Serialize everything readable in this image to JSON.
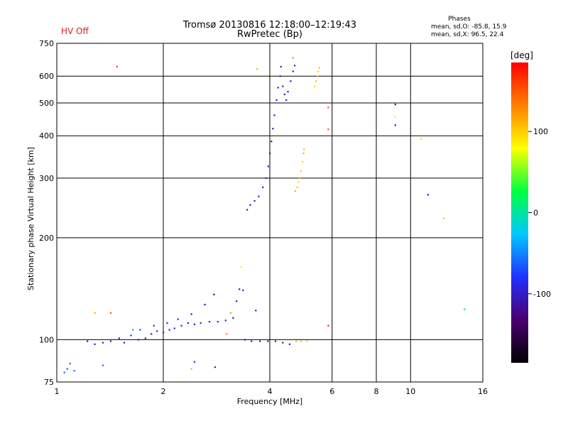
{
  "status": {
    "hv_label": "HV Off",
    "color": "#e02020"
  },
  "header": {
    "title_line1": "Tromsø 20130816 12:18:00–12:19:43",
    "title_line2": "RwPretec (Bp)"
  },
  "phase_stats": {
    "title": "Phases",
    "o_line": "mean, sd,O: -85.8, 15.9",
    "x_line": "mean, sd,X:  96.5, 22.4"
  },
  "colorbar": {
    "label": "[deg]",
    "ticks": [
      {
        "value": 100,
        "label": "100"
      },
      {
        "value": 0,
        "label": "0"
      },
      {
        "value": -100,
        "label": "-100"
      }
    ],
    "range": [
      -185,
      185
    ],
    "stops": [
      "#000000",
      "#4a0070",
      "#2030ff",
      "#00c8ff",
      "#00ff40",
      "#ffff00",
      "#ff8000",
      "#ff0000"
    ]
  },
  "chart_data": {
    "type": "scatter",
    "title": "Tromsø 20130816 12:18:00–12:19:43 RwPretec (Bp)",
    "xlabel": "Frequency [MHz]",
    "ylabel": "Stationary phase Virtual Height [km]",
    "xscale": "log",
    "yscale": "log",
    "xlim": [
      1,
      16
    ],
    "ylim": [
      75,
      750
    ],
    "xticks": [
      {
        "v": 1,
        "l": "1"
      },
      {
        "v": 2,
        "l": "2"
      },
      {
        "v": 4,
        "l": "4"
      },
      {
        "v": 6,
        "l": "6"
      },
      {
        "v": 8,
        "l": "8"
      },
      {
        "v": 10,
        "l": "10"
      },
      {
        "v": 16,
        "l": "16"
      }
    ],
    "yticks": [
      {
        "v": 75,
        "l": "75"
      },
      {
        "v": 100,
        "l": "100"
      },
      {
        "v": 200,
        "l": "200"
      },
      {
        "v": 300,
        "l": "300"
      },
      {
        "v": 400,
        "l": "400"
      },
      {
        "v": 500,
        "l": "500"
      },
      {
        "v": 600,
        "l": "600"
      },
      {
        "v": 750,
        "l": "750"
      }
    ],
    "grid": true,
    "series": [
      {
        "color_by": "phase_deg",
        "points": [
          [
            1.05,
            80,
            -60
          ],
          [
            1.07,
            82,
            -60
          ],
          [
            1.09,
            85,
            -60
          ],
          [
            1.12,
            81,
            -60
          ],
          [
            1.22,
            99,
            -105
          ],
          [
            1.28,
            97,
            -105
          ],
          [
            1.35,
            98,
            -100
          ],
          [
            1.42,
            99,
            -105
          ],
          [
            1.5,
            101,
            -100
          ],
          [
            1.55,
            98,
            -105
          ],
          [
            1.62,
            103,
            -95
          ],
          [
            1.7,
            100,
            -100
          ],
          [
            1.78,
            101,
            -105
          ],
          [
            1.85,
            104,
            -100
          ],
          [
            1.92,
            106,
            -95
          ],
          [
            2.0,
            105,
            -100
          ],
          [
            2.08,
            107,
            -105
          ],
          [
            2.15,
            108,
            -100
          ],
          [
            2.25,
            110,
            -95
          ],
          [
            2.35,
            112,
            -100
          ],
          [
            2.45,
            111,
            -105
          ],
          [
            2.55,
            112,
            -100
          ],
          [
            2.7,
            113,
            -105
          ],
          [
            2.85,
            113,
            -100
          ],
          [
            3.0,
            114,
            -105
          ],
          [
            3.15,
            116,
            -100
          ],
          [
            1.72,
            107,
            -80
          ],
          [
            1.88,
            110,
            -90
          ],
          [
            2.05,
            112,
            -85
          ],
          [
            2.2,
            115,
            -95
          ],
          [
            2.4,
            119,
            -110
          ],
          [
            2.62,
            127,
            -105
          ],
          [
            2.78,
            136,
            -110
          ],
          [
            3.22,
            130,
            -105
          ],
          [
            3.28,
            141,
            -110
          ],
          [
            3.32,
            164,
            70
          ],
          [
            2.45,
            86,
            -90
          ],
          [
            2.8,
            83,
            -100
          ],
          [
            3.02,
            104,
            130
          ],
          [
            3.4,
            100,
            -110
          ],
          [
            3.55,
            99,
            -110
          ],
          [
            3.75,
            99,
            -110
          ],
          [
            3.95,
            99,
            -110
          ],
          [
            4.15,
            99,
            -110
          ],
          [
            4.35,
            98,
            -110
          ],
          [
            4.55,
            97,
            -105
          ],
          [
            4.75,
            99,
            110
          ],
          [
            4.9,
            99,
            100
          ],
          [
            5.1,
            99,
            95
          ],
          [
            3.45,
            242,
            -110
          ],
          [
            3.52,
            250,
            -105
          ],
          [
            3.62,
            257,
            -110
          ],
          [
            3.72,
            265,
            -105
          ],
          [
            3.82,
            282,
            -110
          ],
          [
            3.9,
            300,
            -105
          ],
          [
            3.96,
            325,
            -110
          ],
          [
            4.0,
            355,
            -105
          ],
          [
            4.04,
            385,
            -110
          ],
          [
            4.08,
            420,
            -105
          ],
          [
            4.12,
            460,
            -110
          ],
          [
            4.18,
            510,
            -105
          ],
          [
            4.22,
            555,
            -110
          ],
          [
            4.28,
            600,
            -105
          ],
          [
            4.3,
            640,
            -110
          ],
          [
            4.35,
            560,
            -105
          ],
          [
            4.4,
            530,
            -110
          ],
          [
            4.45,
            510,
            -105
          ],
          [
            4.5,
            540,
            -110
          ],
          [
            4.58,
            580,
            -105
          ],
          [
            4.65,
            620,
            -110
          ],
          [
            4.7,
            645,
            -105
          ],
          [
            4.72,
            275,
            110
          ],
          [
            4.78,
            282,
            105
          ],
          [
            4.82,
            292,
            100
          ],
          [
            4.86,
            300,
            110
          ],
          [
            4.9,
            315,
            105
          ],
          [
            4.95,
            335,
            100
          ],
          [
            4.98,
            355,
            110
          ],
          [
            5.0,
            365,
            105
          ],
          [
            5.35,
            560,
            100
          ],
          [
            5.4,
            580,
            105
          ],
          [
            5.45,
            600,
            110
          ],
          [
            5.48,
            620,
            100
          ],
          [
            5.52,
            635,
            105
          ],
          [
            1.48,
            640,
            160
          ],
          [
            3.68,
            630,
            110
          ],
          [
            4.65,
            680,
            120
          ],
          [
            5.85,
            485,
            150
          ],
          [
            5.85,
            418,
            150
          ],
          [
            5.85,
            110,
            170
          ],
          [
            9.05,
            495,
            -110
          ],
          [
            9.05,
            455,
            70
          ],
          [
            9.05,
            430,
            -110
          ],
          [
            10.7,
            392,
            100
          ],
          [
            11.2,
            268,
            -110
          ],
          [
            12.4,
            228,
            105
          ],
          [
            14.2,
            123,
            -20
          ],
          [
            1.35,
            84,
            -60
          ],
          [
            2.4,
            82,
            110
          ],
          [
            3.36,
            140,
            -105
          ],
          [
            3.65,
            122,
            -110
          ],
          [
            3.1,
            120,
            120
          ],
          [
            1.28,
            120,
            120
          ],
          [
            1.42,
            120,
            150
          ],
          [
            1.64,
            107,
            -40
          ]
        ]
      }
    ]
  }
}
